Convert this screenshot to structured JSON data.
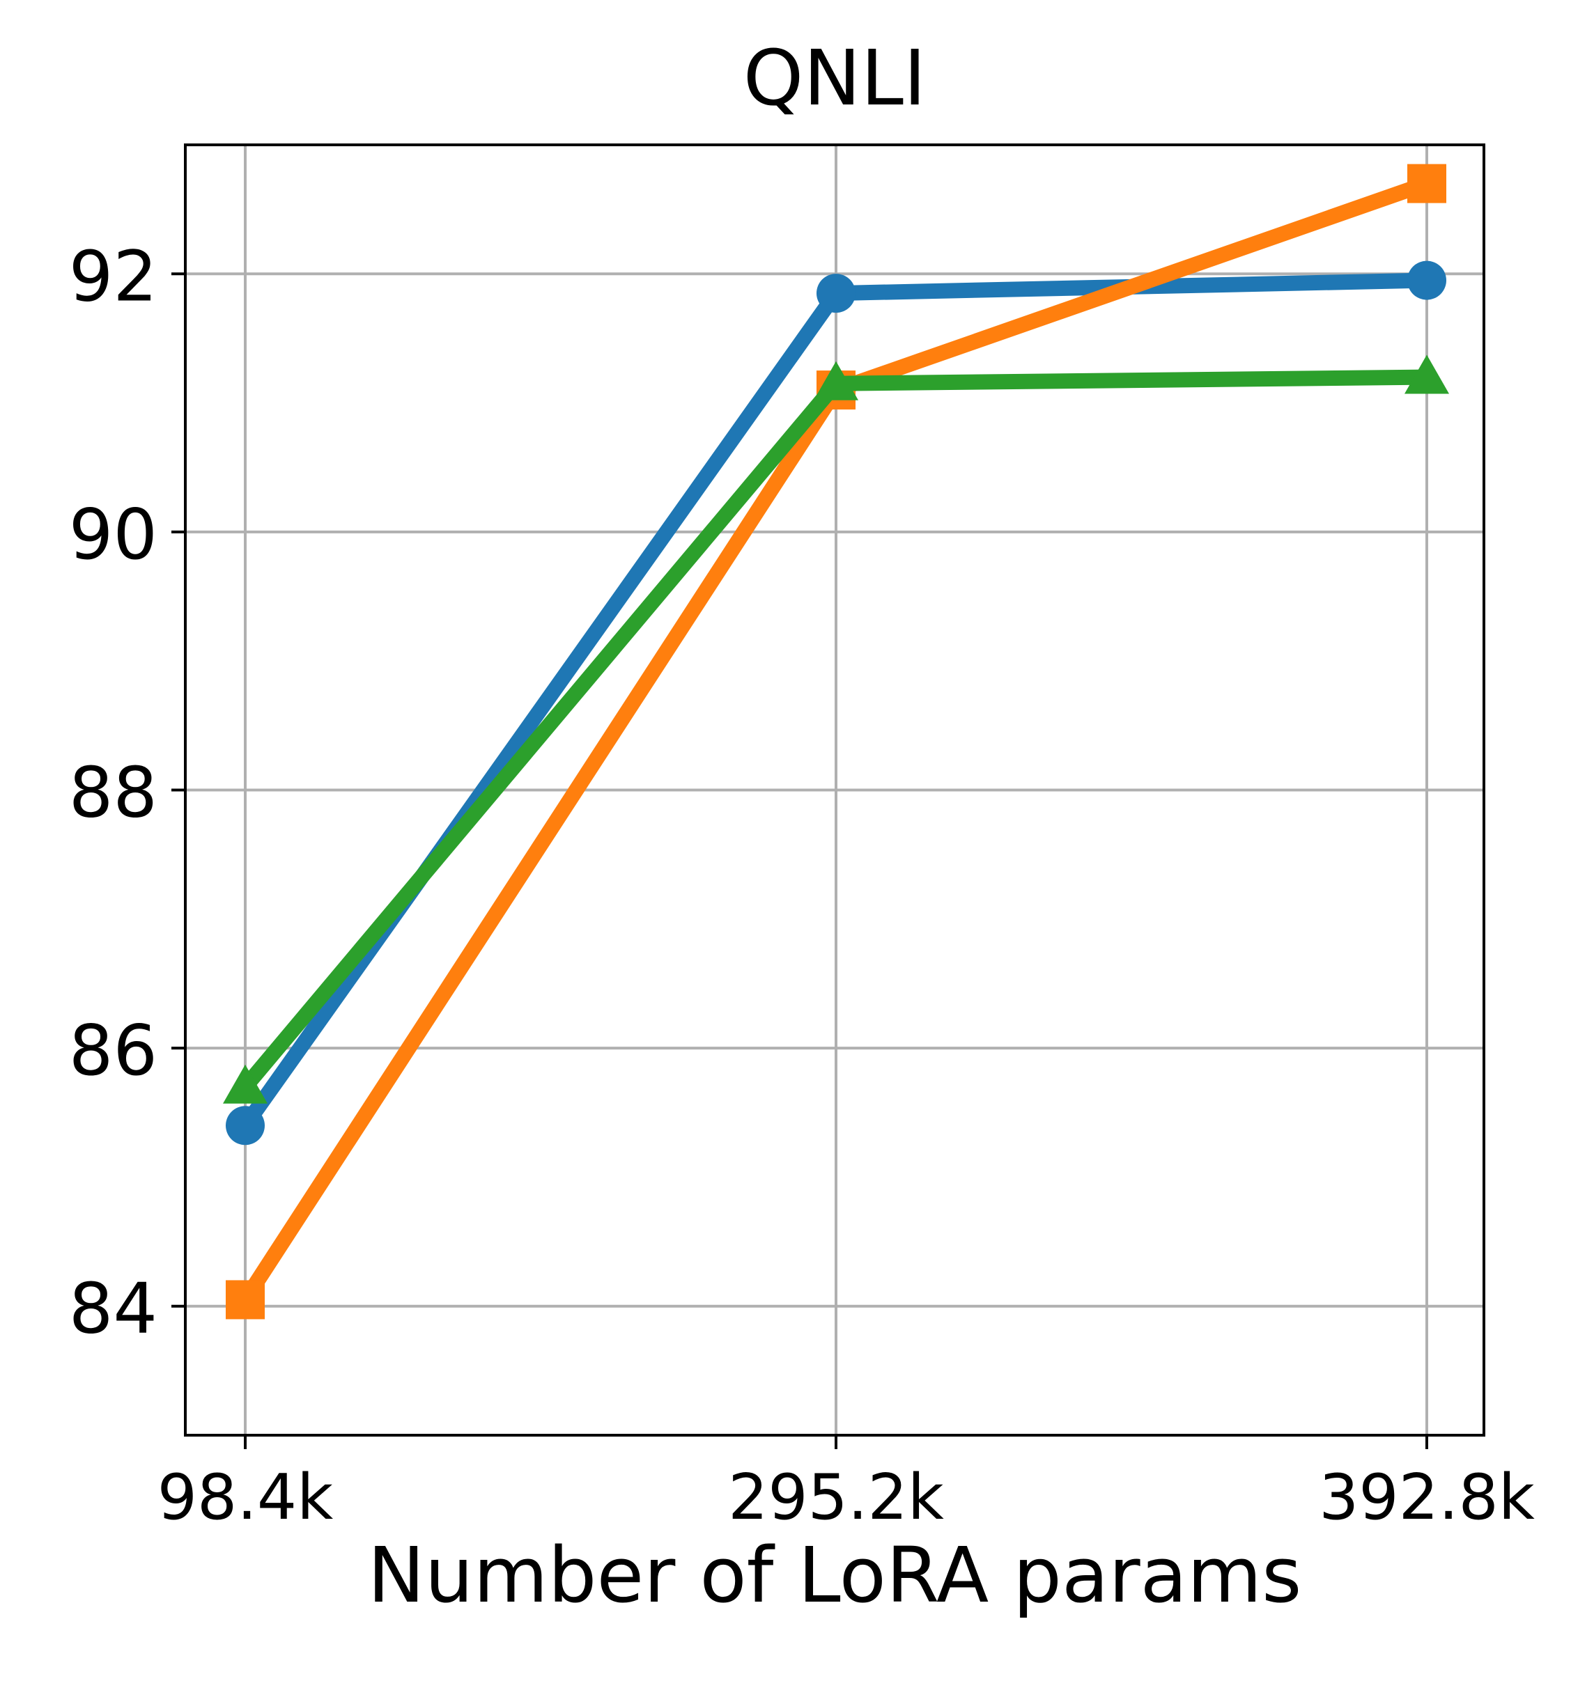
{
  "chart_data": {
    "type": "line",
    "title": "QNLI",
    "xlabel": "Number of LoRA params",
    "ylabel": "",
    "categories": [
      "98.4k",
      "295.2k",
      "392.8k"
    ],
    "yticks": [
      "84",
      "86",
      "88",
      "90",
      "92"
    ],
    "ylim": [
      83.0,
      93.0
    ],
    "grid": true,
    "series": [
      {
        "color": "#1f77b4",
        "marker": "circle",
        "values": [
          85.4,
          91.85,
          91.95
        ]
      },
      {
        "color": "#ff7f0e",
        "marker": "square",
        "values": [
          84.05,
          91.1,
          92.7
        ]
      },
      {
        "color": "#2ca02c",
        "marker": "triangle",
        "values": [
          85.7,
          91.15,
          91.2
        ]
      }
    ]
  }
}
